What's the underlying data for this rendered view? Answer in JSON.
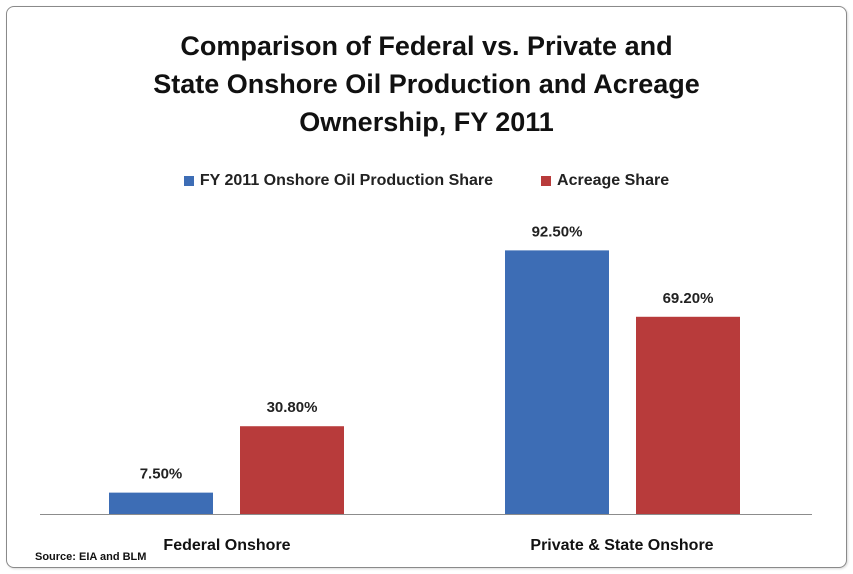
{
  "colors": {
    "series1": "#3d6db5",
    "series2": "#b83b3b",
    "axis": "#8c8c8c"
  },
  "chart_data": {
    "type": "bar",
    "title": "Comparison of Federal vs. Private and\nState Onshore Oil Production and Acreage\nOwnership, FY 2011",
    "categories": [
      "Federal Onshore",
      "Private & State Onshore"
    ],
    "series": [
      {
        "name": "FY 2011 Onshore Oil Production Share",
        "values": [
          7.5,
          92.5
        ],
        "labels": [
          "7.50%",
          "92.50%"
        ]
      },
      {
        "name": "Acreage Share",
        "values": [
          30.8,
          69.2
        ],
        "labels": [
          "30.80%",
          "69.20%"
        ]
      }
    ],
    "ylim": [
      0,
      100
    ],
    "xlabel": "",
    "ylabel": "",
    "grid": false,
    "legend_position": "top"
  },
  "source": "Source: EIA and BLM"
}
